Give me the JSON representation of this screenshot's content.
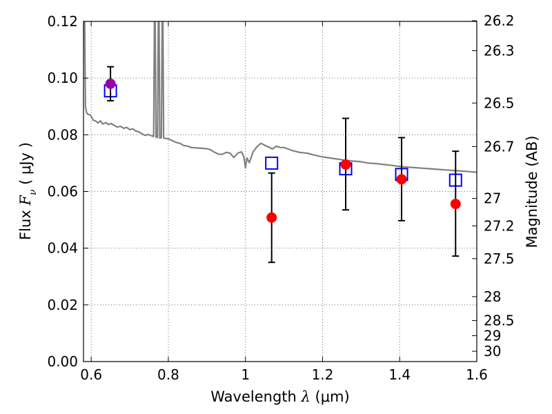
{
  "chart_data": {
    "type": "scatter",
    "title": "",
    "xlabel": {
      "prefix": "Wavelength  ",
      "symbol": "λ",
      "unit": " (μm)"
    },
    "ylabel": {
      "prefix": "Flux  ",
      "symbol": "F",
      "sub": "ν",
      "unit": "  ( μJy )"
    },
    "ylabel_right": "Magnitude (AB)",
    "xlim": [
      0.58,
      1.6
    ],
    "ylim": [
      0.0,
      0.12
    ],
    "grid": true,
    "x_ticks": [
      {
        "value": 0.6,
        "label": "0.6"
      },
      {
        "value": 0.8,
        "label": "0.8"
      },
      {
        "value": 1.0,
        "label": "1"
      },
      {
        "value": 1.2,
        "label": "1.2"
      },
      {
        "value": 1.4,
        "label": "1.4"
      },
      {
        "value": 1.6,
        "label": "1.6"
      }
    ],
    "y_ticks": [
      {
        "value": 0.0,
        "label": "0.00"
      },
      {
        "value": 0.02,
        "label": "0.02"
      },
      {
        "value": 0.04,
        "label": "0.04"
      },
      {
        "value": 0.06,
        "label": "0.06"
      },
      {
        "value": 0.08,
        "label": "0.08"
      },
      {
        "value": 0.1,
        "label": "0.10"
      },
      {
        "value": 0.12,
        "label": "0.12"
      }
    ],
    "mag_ticks": [
      {
        "mag": 26.2,
        "label": "26.2"
      },
      {
        "mag": 26.3,
        "label": "26.3"
      },
      {
        "mag": 26.5,
        "label": "26.5"
      },
      {
        "mag": 26.7,
        "label": "26.7"
      },
      {
        "mag": 27.0,
        "label": "27"
      },
      {
        "mag": 27.2,
        "label": "27.2"
      },
      {
        "mag": 27.5,
        "label": "27.5"
      },
      {
        "mag": 28.0,
        "label": "28"
      },
      {
        "mag": 28.5,
        "label": "28.5"
      },
      {
        "mag": 29.0,
        "label": "29"
      },
      {
        "mag": 30.0,
        "label": "30"
      }
    ],
    "series": [
      {
        "kind": "model-sed-line",
        "color": "#808080",
        "points": [
          [
            0.583,
            0.12
          ],
          [
            0.585,
            0.09
          ],
          [
            0.588,
            0.0878
          ],
          [
            0.592,
            0.0872
          ],
          [
            0.598,
            0.087
          ],
          [
            0.605,
            0.0852
          ],
          [
            0.612,
            0.0848
          ],
          [
            0.618,
            0.0842
          ],
          [
            0.624,
            0.0849
          ],
          [
            0.63,
            0.0838
          ],
          [
            0.638,
            0.0843
          ],
          [
            0.645,
            0.0836
          ],
          [
            0.652,
            0.084
          ],
          [
            0.66,
            0.0833
          ],
          [
            0.668,
            0.0827
          ],
          [
            0.676,
            0.083
          ],
          [
            0.684,
            0.0823
          ],
          [
            0.692,
            0.0826
          ],
          [
            0.7,
            0.0818
          ],
          [
            0.708,
            0.0821
          ],
          [
            0.716,
            0.0813
          ],
          [
            0.724,
            0.081
          ],
          [
            0.732,
            0.0803
          ],
          [
            0.74,
            0.0798
          ],
          [
            0.748,
            0.0801
          ],
          [
            0.756,
            0.0797
          ],
          [
            0.762,
            0.0794
          ],
          [
            0.764,
            0.12
          ],
          [
            0.766,
            0.12
          ],
          [
            0.768,
            0.0792
          ],
          [
            0.772,
            0.079
          ],
          [
            0.774,
            0.12
          ],
          [
            0.776,
            0.12
          ],
          [
            0.778,
            0.0788
          ],
          [
            0.782,
            0.079
          ],
          [
            0.784,
            0.12
          ],
          [
            0.786,
            0.12
          ],
          [
            0.788,
            0.0788
          ],
          [
            0.8,
            0.0786
          ],
          [
            0.81,
            0.078
          ],
          [
            0.82,
            0.0773
          ],
          [
            0.83,
            0.077
          ],
          [
            0.84,
            0.0762
          ],
          [
            0.85,
            0.076
          ],
          [
            0.86,
            0.0755
          ],
          [
            0.87,
            0.0754
          ],
          [
            0.88,
            0.0753
          ],
          [
            0.89,
            0.0752
          ],
          [
            0.9,
            0.0751
          ],
          [
            0.91,
            0.0747
          ],
          [
            0.92,
            0.0738
          ],
          [
            0.93,
            0.0732
          ],
          [
            0.94,
            0.0731
          ],
          [
            0.95,
            0.0738
          ],
          [
            0.96,
            0.0735
          ],
          [
            0.97,
            0.072
          ],
          [
            0.98,
            0.0735
          ],
          [
            0.99,
            0.074
          ],
          [
            0.996,
            0.0722
          ],
          [
            1.0,
            0.0683
          ],
          [
            1.004,
            0.0718
          ],
          [
            1.01,
            0.0702
          ],
          [
            1.02,
            0.074
          ],
          [
            1.03,
            0.0758
          ],
          [
            1.04,
            0.077
          ],
          [
            1.05,
            0.0763
          ],
          [
            1.06,
            0.0757
          ],
          [
            1.07,
            0.075
          ],
          [
            1.08,
            0.076
          ],
          [
            1.09,
            0.0755
          ],
          [
            1.1,
            0.0755
          ],
          [
            1.12,
            0.0745
          ],
          [
            1.14,
            0.0738
          ],
          [
            1.16,
            0.0735
          ],
          [
            1.18,
            0.0728
          ],
          [
            1.2,
            0.0722
          ],
          [
            1.22,
            0.0718
          ],
          [
            1.24,
            0.0714
          ],
          [
            1.26,
            0.071
          ],
          [
            1.28,
            0.0707
          ],
          [
            1.3,
            0.0705
          ],
          [
            1.32,
            0.07
          ],
          [
            1.34,
            0.0698
          ],
          [
            1.36,
            0.0695
          ],
          [
            1.38,
            0.0692
          ],
          [
            1.4,
            0.0688
          ],
          [
            1.42,
            0.0686
          ],
          [
            1.44,
            0.0684
          ],
          [
            1.46,
            0.0682
          ],
          [
            1.48,
            0.068
          ],
          [
            1.5,
            0.0678
          ],
          [
            1.52,
            0.0676
          ],
          [
            1.54,
            0.0674
          ],
          [
            1.56,
            0.0672
          ],
          [
            1.58,
            0.067
          ],
          [
            1.6,
            0.0668
          ]
        ]
      },
      {
        "kind": "model-photometry",
        "marker": "open-square",
        "color": "#0000ff",
        "points": [
          {
            "x": 0.65,
            "y": 0.0955
          },
          {
            "x": 1.068,
            "y": 0.07
          },
          {
            "x": 1.26,
            "y": 0.068
          },
          {
            "x": 1.405,
            "y": 0.066
          },
          {
            "x": 1.545,
            "y": 0.064
          }
        ]
      },
      {
        "kind": "observed-photometry",
        "marker": "filled-circle",
        "points": [
          {
            "x": 0.65,
            "y": 0.098,
            "ylo": 0.092,
            "yhi": 0.104,
            "color": "#9900aa"
          },
          {
            "x": 1.068,
            "y": 0.0508,
            "ylo": 0.035,
            "yhi": 0.0665,
            "color": "#ff0000"
          },
          {
            "x": 1.26,
            "y": 0.0695,
            "ylo": 0.0535,
            "yhi": 0.0858,
            "color": "#ff0000"
          },
          {
            "x": 1.405,
            "y": 0.0643,
            "ylo": 0.0497,
            "yhi": 0.079,
            "color": "#ff0000"
          },
          {
            "x": 1.545,
            "y": 0.0556,
            "ylo": 0.0372,
            "yhi": 0.0742,
            "color": "#ff0000"
          }
        ]
      }
    ]
  }
}
